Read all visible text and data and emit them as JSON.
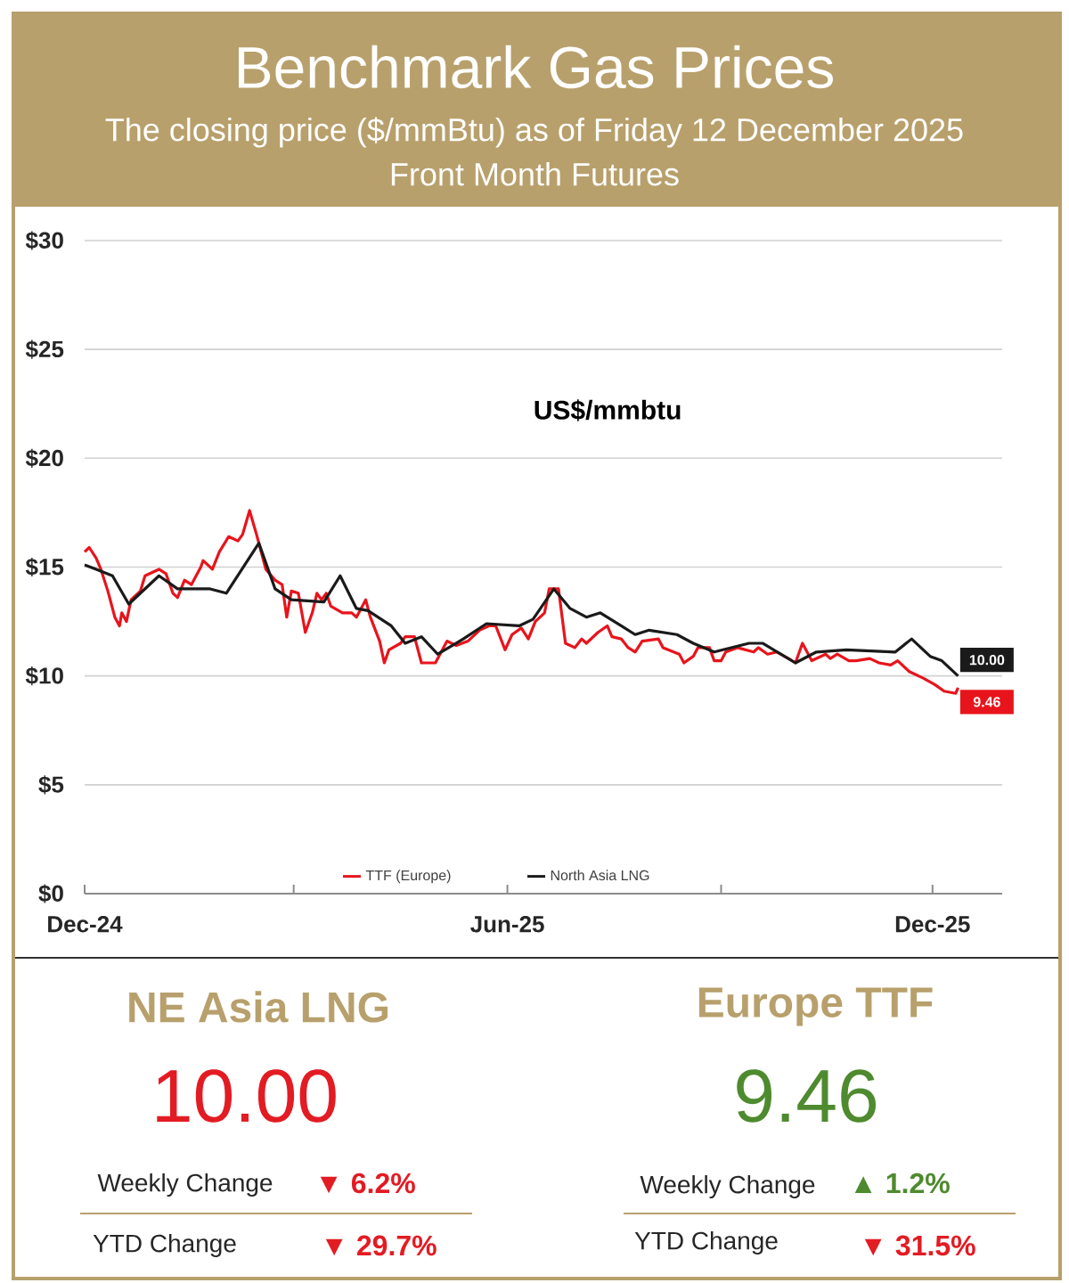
{
  "chart_data": [
    {
      "type": "line",
      "title": "Benchmark Gas Prices",
      "subtitle": "The closing price ($/mmBtu) as of Friday 12 December 2025\nFront Month Futures",
      "xlim": [
        "2024-12-01",
        "2025-12-31"
      ],
      "ylim": [
        0,
        30
      ],
      "xticks": [
        {
          "value": "2024-12-01",
          "label": "Dec-24"
        },
        {
          "value": "2025-03-01",
          "label": null
        },
        {
          "value": "2025-06-01",
          "label": "Jun-25"
        },
        {
          "value": "2025-09-01",
          "label": null
        },
        {
          "value": "2025-12-01",
          "label": "Dec-25"
        }
      ],
      "yticks": [
        {
          "value": 0,
          "label": "$0"
        },
        {
          "value": 5,
          "label": "$5"
        },
        {
          "value": 10,
          "label": "$10"
        },
        {
          "value": 15,
          "label": "$15"
        },
        {
          "value": 20,
          "label": "$20"
        },
        {
          "value": 25,
          "label": "$25"
        },
        {
          "value": 30,
          "label": "$30"
        }
      ],
      "grid": "y",
      "legend": "bottom",
      "series": [
        {
          "name": "TTF (Europe)",
          "color": "#e8141c",
          "x": [
            "2024-12-01",
            "2024-12-03",
            "2024-12-06",
            "2024-12-08",
            "2024-12-11",
            "2024-12-14",
            "2024-12-16",
            "2024-12-17",
            "2024-12-19",
            "2024-12-21",
            "2024-12-25",
            "2024-12-27",
            "2025-01-02",
            "2025-01-05",
            "2025-01-08",
            "2025-01-10",
            "2025-01-13",
            "2025-01-16",
            "2025-01-20",
            "2025-01-21",
            "2025-01-25",
            "2025-01-28",
            "2025-02-01",
            "2025-02-05",
            "2025-02-07",
            "2025-02-10",
            "2025-02-13",
            "2025-02-17",
            "2025-02-21",
            "2025-02-24",
            "2025-02-26",
            "2025-02-28",
            "2025-03-03",
            "2025-03-06",
            "2025-03-09",
            "2025-03-11",
            "2025-03-13",
            "2025-03-15",
            "2025-03-17",
            "2025-03-22",
            "2025-03-26",
            "2025-03-28",
            "2025-04-01",
            "2025-04-03",
            "2025-04-07",
            "2025-04-09",
            "2025-04-11",
            "2025-04-16",
            "2025-04-18",
            "2025-04-22",
            "2025-04-25",
            "2025-05-01",
            "2025-05-06",
            "2025-05-10",
            "2025-05-15",
            "2025-05-20",
            "2025-05-24",
            "2025-05-27",
            "2025-05-31",
            "2025-06-03",
            "2025-06-07",
            "2025-06-10",
            "2025-06-13",
            "2025-06-17",
            "2025-06-19",
            "2025-06-23",
            "2025-06-26",
            "2025-06-30",
            "2025-07-03",
            "2025-07-05",
            "2025-07-10",
            "2025-07-14",
            "2025-07-16",
            "2025-07-20",
            "2025-07-23",
            "2025-07-26",
            "2025-07-29",
            "2025-08-05",
            "2025-08-07",
            "2025-08-14",
            "2025-08-16",
            "2025-08-20",
            "2025-08-22",
            "2025-08-27",
            "2025-08-29",
            "2025-09-01",
            "2025-09-03",
            "2025-09-08",
            "2025-09-15",
            "2025-09-17",
            "2025-09-21",
            "2025-09-25",
            "2025-09-30",
            "2025-10-03",
            "2025-10-06",
            "2025-10-10",
            "2025-10-16",
            "2025-10-18",
            "2025-10-21",
            "2025-10-26",
            "2025-10-29",
            "2025-11-04",
            "2025-11-08",
            "2025-11-13",
            "2025-11-16",
            "2025-11-21",
            "2025-11-27",
            "2025-12-02",
            "2025-12-06",
            "2025-12-11",
            "2025-12-12"
          ],
          "values": [
            15.7,
            15.9,
            15.4,
            14.9,
            13.9,
            12.7,
            12.3,
            12.9,
            12.5,
            13.5,
            13.9,
            14.6,
            14.9,
            14.7,
            13.8,
            13.6,
            14.4,
            14.2,
            15.0,
            15.3,
            14.9,
            15.7,
            16.4,
            16.2,
            16.5,
            17.6,
            16.5,
            14.9,
            14.4,
            14.2,
            12.7,
            13.9,
            13.8,
            12.0,
            12.9,
            13.8,
            13.5,
            13.8,
            13.2,
            12.9,
            12.9,
            12.7,
            13.5,
            12.7,
            11.6,
            10.6,
            11.2,
            11.5,
            11.8,
            11.8,
            10.6,
            10.6,
            11.6,
            11.4,
            11.6,
            12.1,
            12.3,
            12.3,
            11.2,
            11.9,
            12.2,
            11.7,
            12.5,
            12.9,
            14.0,
            14.0,
            11.5,
            11.3,
            11.7,
            11.5,
            12.0,
            12.3,
            11.8,
            11.7,
            11.3,
            11.1,
            11.6,
            11.7,
            11.3,
            11.0,
            10.6,
            10.9,
            11.3,
            11.3,
            10.7,
            10.7,
            11.1,
            11.3,
            11.1,
            11.3,
            11.0,
            11.1,
            10.8,
            10.6,
            11.5,
            10.7,
            11.0,
            10.8,
            11.0,
            10.7,
            10.7,
            10.8,
            10.6,
            10.5,
            10.7,
            10.2,
            9.9,
            9.6,
            9.3,
            9.2,
            9.46
          ]
        },
        {
          "name": "North Asia LNG",
          "color": "#1a1a1a",
          "x": [
            "2024-12-01",
            "2024-12-06",
            "2024-12-13",
            "2024-12-20",
            "2025-01-02",
            "2025-01-10",
            "2025-01-24",
            "2025-01-31",
            "2025-02-14",
            "2025-02-21",
            "2025-02-28",
            "2025-03-14",
            "2025-03-21",
            "2025-03-28",
            "2025-04-02",
            "2025-04-12",
            "2025-04-18",
            "2025-04-25",
            "2025-05-02",
            "2025-05-13",
            "2025-05-23",
            "2025-06-06",
            "2025-06-12",
            "2025-06-21",
            "2025-06-28",
            "2025-07-05",
            "2025-07-11",
            "2025-07-20",
            "2025-07-26",
            "2025-08-01",
            "2025-08-13",
            "2025-08-20",
            "2025-08-29",
            "2025-09-13",
            "2025-09-19",
            "2025-10-03",
            "2025-10-12",
            "2025-10-25",
            "2025-11-15",
            "2025-11-22",
            "2025-11-30",
            "2025-12-05",
            "2025-12-12"
          ],
          "values": [
            15.1,
            14.9,
            14.6,
            13.3,
            14.6,
            14.0,
            14.0,
            13.8,
            16.1,
            14.0,
            13.5,
            13.4,
            14.6,
            13.1,
            13.0,
            12.3,
            11.5,
            11.8,
            11.0,
            11.7,
            12.4,
            12.3,
            12.6,
            14.0,
            13.1,
            12.7,
            12.9,
            12.3,
            11.9,
            12.1,
            11.9,
            11.5,
            11.1,
            11.5,
            11.5,
            10.6,
            11.1,
            11.2,
            11.1,
            11.7,
            10.9,
            10.7,
            10.0
          ]
        }
      ],
      "annotations": [
        "US$/mmbtu",
        {
          "text": "10.00",
          "x": "2025-12-12",
          "y": 10.0
        },
        {
          "text": "9.46",
          "x": "2025-12-12",
          "y": 9.46
        }
      ]
    },
    {
      "type": "other",
      "annotations": [
        "NE Asia LNG",
        "10.00",
        "Weekly Change",
        "▼ 6.2%",
        "YTD Change",
        "▼ 29.7%",
        "Europe TTF",
        "9.46",
        "Weekly Change",
        "▲ 1.2%",
        "YTD Change",
        "▼ 31.5%"
      ]
    }
  ]
}
